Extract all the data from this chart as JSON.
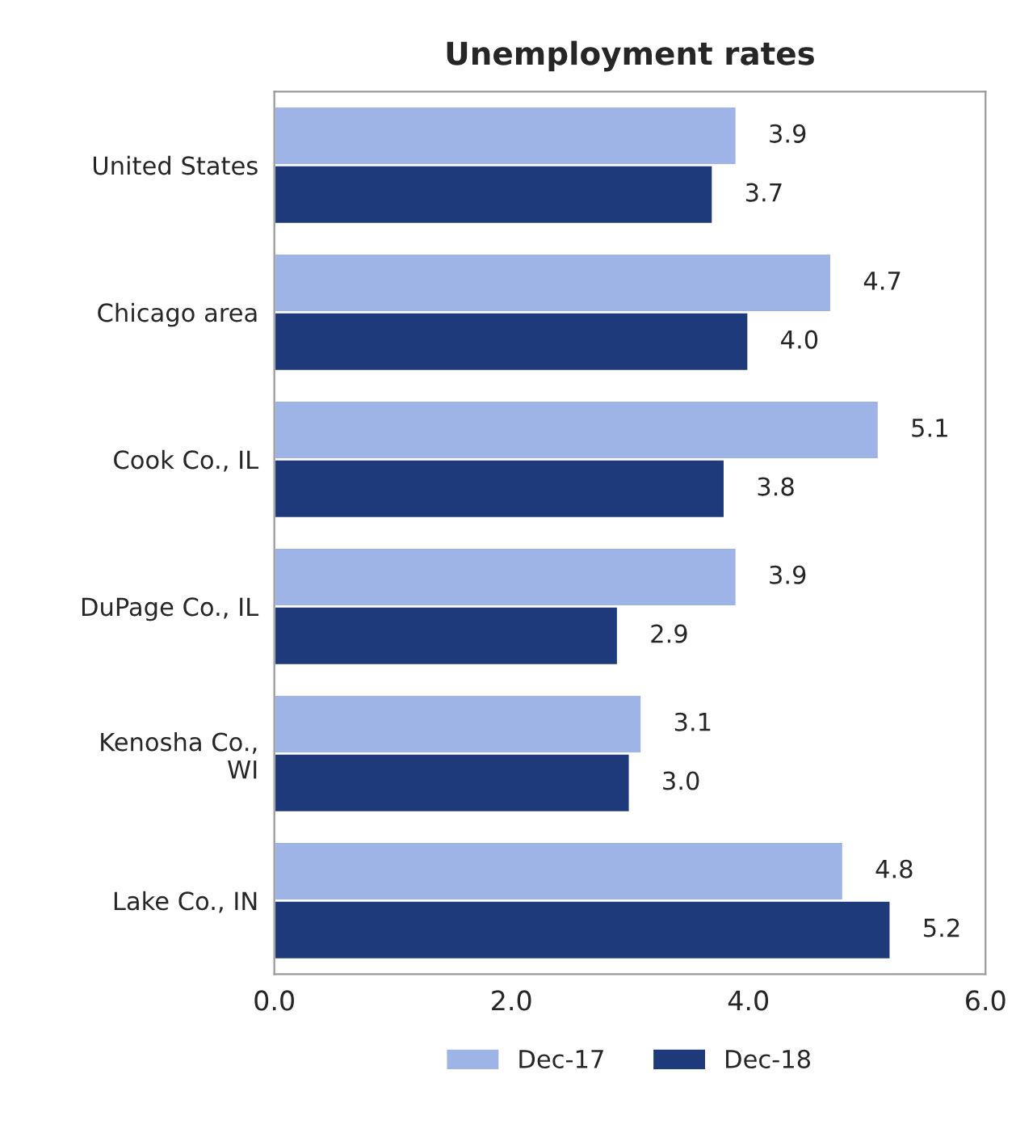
{
  "chart_data": {
    "type": "bar",
    "orientation": "horizontal",
    "title": "Unemployment rates",
    "categories": [
      "United States",
      "Chicago area",
      "Cook Co., IL",
      "DuPage Co., IL",
      "Kenosha Co.,\nWI",
      "Lake Co., IN"
    ],
    "series": [
      {
        "name": "Dec-17",
        "color": "#9fb4e6",
        "values": [
          3.9,
          4.7,
          5.1,
          3.9,
          3.1,
          4.8
        ],
        "value_labels": [
          "3.9",
          "4.7",
          "5.1",
          "3.9",
          "3.1",
          "4.8"
        ]
      },
      {
        "name": "Dec-18",
        "color": "#1f3a7a",
        "values": [
          3.7,
          4.0,
          3.8,
          2.9,
          3.0,
          5.2
        ],
        "value_labels": [
          "3.7",
          "4.0",
          "3.8",
          "2.9",
          "3.0",
          "5.2"
        ]
      }
    ],
    "xlim": [
      0,
      6
    ],
    "xticks": [
      {
        "value": 0,
        "label": "0.0"
      },
      {
        "value": 2,
        "label": "2.0"
      },
      {
        "value": 4,
        "label": "4.0"
      },
      {
        "value": 6,
        "label": "6.0"
      }
    ],
    "grid": false,
    "legend": "bottom"
  }
}
